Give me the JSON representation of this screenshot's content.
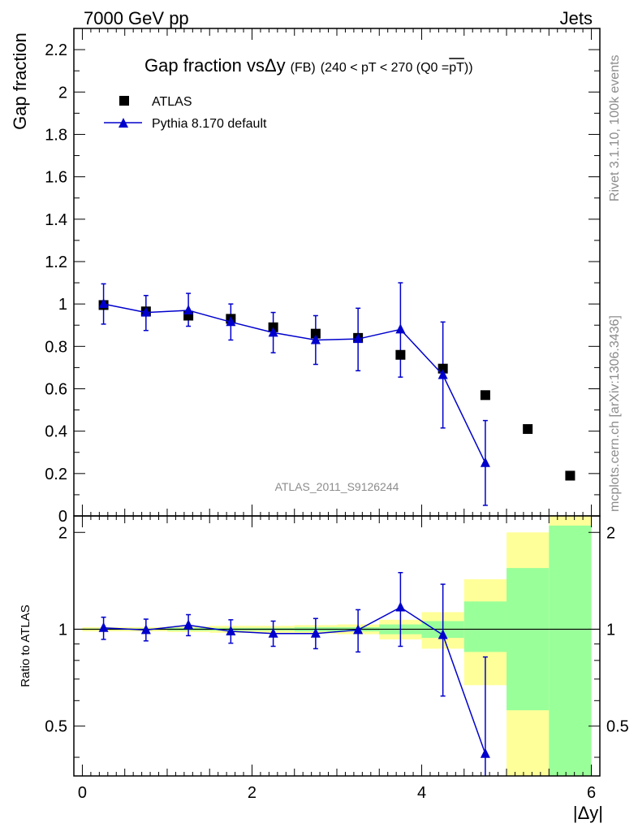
{
  "header": {
    "left": "7000 GeV pp",
    "right": "Jets"
  },
  "side_labels": {
    "rivet": "Rivet 3.1.10,  100k events",
    "mcplots": "mcplots.cern.ch [arXiv:1306.3436]"
  },
  "chart_data": [
    {
      "type": "scatter",
      "panel": "main",
      "title_main": "Gap fraction vs",
      "title_delta": "Δy",
      "title_fb": "(FB)",
      "title_range": "(240 < pT < 270 (Q0 =",
      "title_q0": "pT",
      "title_close": "))",
      "ylabel": "Gap fraction",
      "xlim": [
        -0.1,
        6.1
      ],
      "ylim": [
        0,
        2.3
      ],
      "yticks": [
        0,
        0.2,
        0.4,
        0.6,
        0.8,
        1,
        1.2,
        1.4,
        1.6,
        1.8,
        2,
        2.2
      ],
      "watermark": "ATLAS_2011_S9126244",
      "legend_position": "top-left",
      "series": [
        {
          "name": "ATLAS",
          "marker": "square",
          "color": "#000000",
          "x": [
            0.25,
            0.75,
            1.25,
            1.75,
            2.25,
            2.75,
            3.25,
            3.75,
            4.25,
            4.75,
            5.25,
            5.75
          ],
          "y": [
            0.995,
            0.965,
            0.945,
            0.93,
            0.89,
            0.86,
            0.84,
            0.76,
            0.695,
            0.57,
            0.41,
            0.19
          ]
        },
        {
          "name": "Pythia 8.170 default",
          "marker": "triangle",
          "color": "#0000cc",
          "x": [
            0.25,
            0.75,
            1.25,
            1.75,
            2.25,
            2.75,
            3.25,
            3.75,
            4.25,
            4.75
          ],
          "y": [
            1.0,
            0.96,
            0.97,
            0.915,
            0.865,
            0.83,
            0.835,
            0.88,
            0.665,
            0.25
          ],
          "err_low": [
            0.905,
            0.875,
            0.895,
            0.83,
            0.77,
            0.715,
            0.685,
            0.655,
            0.415,
            0.05
          ],
          "err_high": [
            1.095,
            1.04,
            1.05,
            1.0,
            0.96,
            0.945,
            0.98,
            1.1,
            0.915,
            0.45
          ]
        }
      ]
    },
    {
      "type": "scatter",
      "panel": "ratio",
      "ylabel": "Ratio to ATLAS",
      "xlabel": "|Δy|",
      "xlim": [
        -0.1,
        6.1
      ],
      "ylim": [
        0.35,
        2.25
      ],
      "yticks": [
        0.5,
        1,
        2
      ],
      "xticks": [
        0,
        2,
        4,
        6
      ],
      "bands": {
        "x_edges": [
          0,
          0.5,
          1,
          1.5,
          2,
          2.5,
          3,
          3.5,
          4,
          4.5,
          5,
          5.5,
          6
        ],
        "yellow_low": [
          0.985,
          0.985,
          0.98,
          0.975,
          0.975,
          0.97,
          0.965,
          0.93,
          0.87,
          0.67,
          0.35,
          0.35
        ],
        "yellow_high": [
          1.015,
          1.015,
          1.02,
          1.025,
          1.025,
          1.03,
          1.035,
          1.07,
          1.13,
          1.43,
          2.0,
          2.25
        ],
        "green_low": [
          0.995,
          0.995,
          0.99,
          0.99,
          0.99,
          0.985,
          0.985,
          0.965,
          0.94,
          0.85,
          0.56,
          0.35
        ],
        "green_high": [
          1.005,
          1.005,
          1.01,
          1.01,
          1.01,
          1.015,
          1.015,
          1.035,
          1.06,
          1.22,
          1.55,
          2.1
        ]
      },
      "series": [
        {
          "name": "Pythia 8.170 default",
          "marker": "triangle",
          "color": "#0000cc",
          "x": [
            0.25,
            0.75,
            1.25,
            1.75,
            2.25,
            2.75,
            3.25,
            3.75,
            4.25,
            4.75
          ],
          "y": [
            1.01,
            0.995,
            1.03,
            0.985,
            0.97,
            0.97,
            0.995,
            1.17,
            0.96,
            0.41
          ],
          "err_low": [
            0.93,
            0.92,
            0.955,
            0.905,
            0.885,
            0.87,
            0.85,
            0.885,
            0.62,
            0.1
          ],
          "err_high": [
            1.09,
            1.075,
            1.11,
            1.07,
            1.06,
            1.08,
            1.15,
            1.5,
            1.38,
            0.82
          ]
        }
      ]
    }
  ]
}
